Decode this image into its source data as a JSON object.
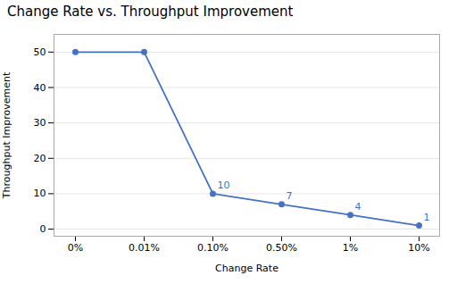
{
  "chart_data": {
    "type": "line",
    "title": "Change Rate vs. Throughput Improvement",
    "xlabel": "Change Rate",
    "ylabel": "Throughput Improvement",
    "categories": [
      "0%",
      "0.01%",
      "0.10%",
      "0.50%",
      "1%",
      "10%"
    ],
    "values": [
      50,
      50,
      10,
      7,
      4,
      1
    ],
    "annotations": [
      null,
      null,
      "10",
      "7",
      "4",
      "1"
    ],
    "color": "#4472C4",
    "marker": "circle",
    "ylim": [
      -2,
      55
    ],
    "yticks": [
      0,
      10,
      20,
      30,
      40,
      50
    ],
    "grid": true
  }
}
